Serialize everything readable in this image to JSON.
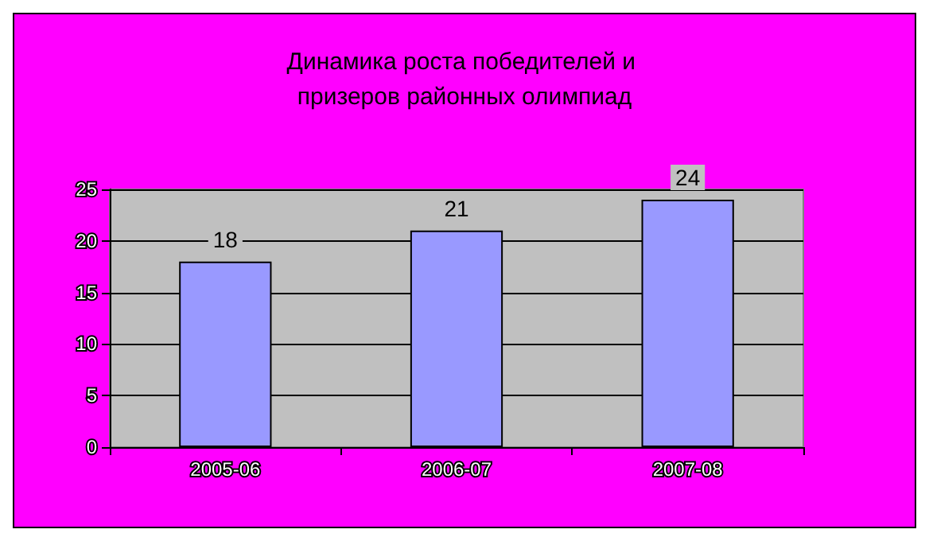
{
  "chart_data": {
    "type": "bar",
    "title": "Динамика роста победителей и призеров районных олимпиад",
    "categories": [
      "2005-06",
      "2006-07",
      "2007-08"
    ],
    "values": [
      18,
      21,
      24
    ],
    "color": "#9999ff",
    "ylim": [
      0,
      25
    ],
    "yticks": [
      0,
      5,
      10,
      15,
      20,
      25
    ],
    "grid": "y",
    "data_labels": true
  }
}
